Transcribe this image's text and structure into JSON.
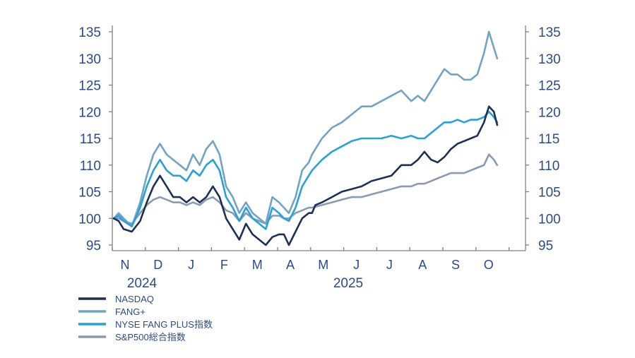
{
  "chart_data": {
    "type": "line",
    "ylim": [
      94,
      135.5
    ],
    "y_ticks": [
      95,
      100,
      105,
      110,
      115,
      120,
      125,
      130,
      135
    ],
    "months": [
      "N",
      "D",
      "J",
      "F",
      "M",
      "A",
      "M",
      "J",
      "J",
      "A",
      "S",
      "O"
    ],
    "years": [
      "2024",
      "2025"
    ],
    "series": [
      {
        "name": "NASDAQ",
        "color": "#1c2f57",
        "points": [
          [
            0.0,
            100
          ],
          [
            0.15,
            99.5
          ],
          [
            0.3,
            98.0
          ],
          [
            0.55,
            97.5
          ],
          [
            0.8,
            99.5
          ],
          [
            1.0,
            103
          ],
          [
            1.2,
            106
          ],
          [
            1.4,
            108
          ],
          [
            1.6,
            106
          ],
          [
            1.8,
            104
          ],
          [
            2.0,
            104
          ],
          [
            2.2,
            103
          ],
          [
            2.4,
            104
          ],
          [
            2.6,
            103
          ],
          [
            2.8,
            104
          ],
          [
            3.0,
            106
          ],
          [
            3.2,
            104
          ],
          [
            3.4,
            100
          ],
          [
            3.6,
            98
          ],
          [
            3.8,
            96
          ],
          [
            4.0,
            99
          ],
          [
            4.2,
            97
          ],
          [
            4.4,
            96
          ],
          [
            4.6,
            95
          ],
          [
            4.8,
            96.5
          ],
          [
            5.0,
            97
          ],
          [
            5.15,
            97
          ],
          [
            5.3,
            95
          ],
          [
            5.5,
            97.5
          ],
          [
            5.7,
            100
          ],
          [
            5.9,
            101
          ],
          [
            6.0,
            101
          ],
          [
            6.1,
            102.5
          ],
          [
            6.3,
            103
          ],
          [
            6.6,
            104
          ],
          [
            6.9,
            105
          ],
          [
            7.2,
            105.5
          ],
          [
            7.5,
            106
          ],
          [
            7.8,
            107
          ],
          [
            8.1,
            107.5
          ],
          [
            8.4,
            108
          ],
          [
            8.7,
            110
          ],
          [
            9.0,
            110
          ],
          [
            9.2,
            111
          ],
          [
            9.4,
            112.5
          ],
          [
            9.6,
            111
          ],
          [
            9.8,
            110.5
          ],
          [
            10.0,
            111.5
          ],
          [
            10.2,
            113
          ],
          [
            10.4,
            114
          ],
          [
            10.6,
            114.5
          ],
          [
            10.8,
            115
          ],
          [
            11.0,
            115.5
          ],
          [
            11.2,
            118
          ],
          [
            11.35,
            121
          ],
          [
            11.5,
            120
          ],
          [
            11.6,
            117.5
          ]
        ]
      },
      {
        "name": "FANG+",
        "color": "#6fa4c6",
        "points": [
          [
            0.0,
            100
          ],
          [
            0.15,
            101
          ],
          [
            0.3,
            100
          ],
          [
            0.55,
            98.5
          ],
          [
            0.8,
            103
          ],
          [
            1.0,
            108
          ],
          [
            1.2,
            112
          ],
          [
            1.4,
            114
          ],
          [
            1.6,
            112
          ],
          [
            1.8,
            111
          ],
          [
            2.0,
            110
          ],
          [
            2.2,
            109
          ],
          [
            2.4,
            112
          ],
          [
            2.6,
            110
          ],
          [
            2.8,
            113
          ],
          [
            3.0,
            114.5
          ],
          [
            3.2,
            112
          ],
          [
            3.4,
            106
          ],
          [
            3.6,
            104
          ],
          [
            3.8,
            101
          ],
          [
            4.0,
            103
          ],
          [
            4.2,
            101
          ],
          [
            4.4,
            100
          ],
          [
            4.6,
            99
          ],
          [
            4.8,
            104
          ],
          [
            5.0,
            103
          ],
          [
            5.15,
            102
          ],
          [
            5.3,
            101
          ],
          [
            5.5,
            104
          ],
          [
            5.7,
            109
          ],
          [
            5.9,
            110.5
          ],
          [
            6.0,
            112
          ],
          [
            6.3,
            115
          ],
          [
            6.6,
            117
          ],
          [
            6.9,
            118
          ],
          [
            7.2,
            119.5
          ],
          [
            7.5,
            121
          ],
          [
            7.8,
            121
          ],
          [
            8.1,
            122
          ],
          [
            8.4,
            123
          ],
          [
            8.7,
            124
          ],
          [
            9.0,
            122
          ],
          [
            9.2,
            123
          ],
          [
            9.4,
            122
          ],
          [
            9.6,
            124
          ],
          [
            9.8,
            126
          ],
          [
            10.0,
            128
          ],
          [
            10.2,
            127
          ],
          [
            10.4,
            127
          ],
          [
            10.6,
            126
          ],
          [
            10.8,
            126
          ],
          [
            11.0,
            127
          ],
          [
            11.2,
            131
          ],
          [
            11.35,
            135
          ],
          [
            11.5,
            132
          ],
          [
            11.6,
            130
          ]
        ]
      },
      {
        "name": "NYSE FANG PLUS指数",
        "color": "#27a1d9",
        "points": [
          [
            0.0,
            100
          ],
          [
            0.15,
            100.5
          ],
          [
            0.3,
            99.5
          ],
          [
            0.55,
            98.5
          ],
          [
            0.8,
            102
          ],
          [
            1.0,
            106
          ],
          [
            1.2,
            109
          ],
          [
            1.4,
            111
          ],
          [
            1.6,
            109
          ],
          [
            1.8,
            108
          ],
          [
            2.0,
            108
          ],
          [
            2.2,
            107
          ],
          [
            2.4,
            109
          ],
          [
            2.6,
            108
          ],
          [
            2.8,
            110
          ],
          [
            3.0,
            111
          ],
          [
            3.2,
            109
          ],
          [
            3.4,
            104
          ],
          [
            3.6,
            102
          ],
          [
            3.8,
            99.5
          ],
          [
            4.0,
            102
          ],
          [
            4.2,
            100
          ],
          [
            4.4,
            99
          ],
          [
            4.6,
            98
          ],
          [
            4.8,
            102
          ],
          [
            5.0,
            101
          ],
          [
            5.15,
            100
          ],
          [
            5.3,
            99.5
          ],
          [
            5.5,
            102
          ],
          [
            5.7,
            106
          ],
          [
            5.9,
            108
          ],
          [
            6.0,
            109
          ],
          [
            6.3,
            111
          ],
          [
            6.6,
            112.5
          ],
          [
            6.9,
            113.5
          ],
          [
            7.2,
            114.5
          ],
          [
            7.5,
            115
          ],
          [
            7.8,
            115
          ],
          [
            8.1,
            115
          ],
          [
            8.4,
            115.5
          ],
          [
            8.7,
            115
          ],
          [
            9.0,
            115.5
          ],
          [
            9.2,
            115
          ],
          [
            9.4,
            115
          ],
          [
            9.6,
            116
          ],
          [
            9.8,
            117
          ],
          [
            10.0,
            118
          ],
          [
            10.2,
            118
          ],
          [
            10.4,
            118.5
          ],
          [
            10.6,
            118
          ],
          [
            10.8,
            118.5
          ],
          [
            11.0,
            118.5
          ],
          [
            11.2,
            119
          ],
          [
            11.35,
            120
          ],
          [
            11.5,
            119
          ],
          [
            11.6,
            118
          ]
        ]
      },
      {
        "name": "S&P500総合指数",
        "color": "#8a9ab3",
        "points": [
          [
            0.0,
            100
          ],
          [
            0.15,
            100
          ],
          [
            0.3,
            99.5
          ],
          [
            0.55,
            99
          ],
          [
            0.8,
            101
          ],
          [
            1.0,
            102.5
          ],
          [
            1.2,
            103.5
          ],
          [
            1.4,
            104
          ],
          [
            1.6,
            103.5
          ],
          [
            1.8,
            103
          ],
          [
            2.0,
            103
          ],
          [
            2.2,
            102.5
          ],
          [
            2.4,
            103
          ],
          [
            2.6,
            102.5
          ],
          [
            2.8,
            103.5
          ],
          [
            3.0,
            104
          ],
          [
            3.2,
            103
          ],
          [
            3.4,
            101.5
          ],
          [
            3.6,
            101
          ],
          [
            3.8,
            99.5
          ],
          [
            4.0,
            101
          ],
          [
            4.2,
            100
          ],
          [
            4.4,
            99.5
          ],
          [
            4.6,
            99
          ],
          [
            4.8,
            100.5
          ],
          [
            5.0,
            100.5
          ],
          [
            5.15,
            100
          ],
          [
            5.3,
            100
          ],
          [
            5.5,
            101
          ],
          [
            5.7,
            101.5
          ],
          [
            5.9,
            102
          ],
          [
            6.0,
            102
          ],
          [
            6.3,
            102.5
          ],
          [
            6.6,
            103
          ],
          [
            6.9,
            103.5
          ],
          [
            7.2,
            104
          ],
          [
            7.5,
            104
          ],
          [
            7.8,
            104.5
          ],
          [
            8.1,
            105
          ],
          [
            8.4,
            105.5
          ],
          [
            8.7,
            106
          ],
          [
            9.0,
            106
          ],
          [
            9.2,
            106.5
          ],
          [
            9.4,
            106.5
          ],
          [
            9.6,
            107
          ],
          [
            9.8,
            107.5
          ],
          [
            10.0,
            108
          ],
          [
            10.2,
            108.5
          ],
          [
            10.4,
            108.5
          ],
          [
            10.6,
            108.5
          ],
          [
            10.8,
            109
          ],
          [
            11.0,
            109.5
          ],
          [
            11.2,
            110
          ],
          [
            11.35,
            112
          ],
          [
            11.5,
            111
          ],
          [
            11.6,
            110
          ]
        ]
      }
    ]
  }
}
